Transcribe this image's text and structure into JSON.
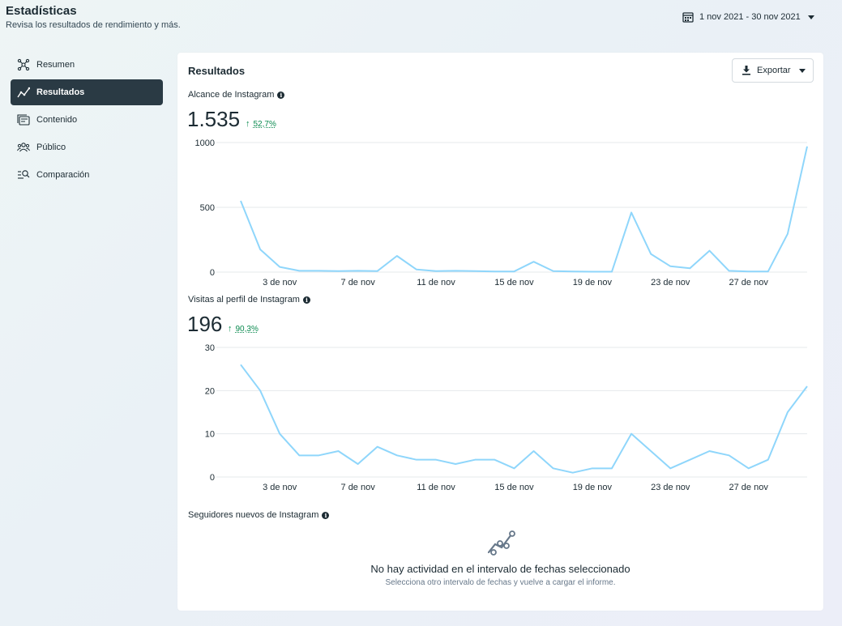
{
  "header": {
    "title": "Estadísticas",
    "subtitle": "Revisa los resultados de rendimiento y más.",
    "date_range": "1 nov 2021 - 30 nov 2021"
  },
  "sidebar": {
    "items": [
      {
        "label": "Resumen",
        "icon": "network-icon",
        "active": false
      },
      {
        "label": "Resultados",
        "icon": "trend-line-icon",
        "active": true
      },
      {
        "label": "Contenido",
        "icon": "content-icon",
        "active": false
      },
      {
        "label": "Público",
        "icon": "people-icon",
        "active": false
      },
      {
        "label": "Comparación",
        "icon": "compare-search-icon",
        "active": false
      }
    ]
  },
  "card": {
    "title": "Resultados",
    "export_label": "Exportar"
  },
  "metrics": {
    "reach": {
      "label": "Alcance de Instagram",
      "value": "1.535",
      "change": "52,7%"
    },
    "profile_visits": {
      "label": "Visitas al perfil de Instagram",
      "value": "196",
      "change": "90,3%"
    },
    "new_followers": {
      "label": "Seguidores nuevos de Instagram",
      "empty_title": "No hay actividad en el intervalo de fechas seleccionado",
      "empty_subtitle": "Selecciona otro intervalo de fechas y vuelve a cargar el informe."
    }
  },
  "colors": {
    "line": "#8fd6fb",
    "grid": "#e4e8eb",
    "accent_positive": "#0a8a4f",
    "active_nav": "#2a3a44"
  },
  "chart_data": [
    {
      "type": "line",
      "title": "Alcance de Instagram",
      "x": [
        "1 nov",
        "2 nov",
        "3 nov",
        "4 nov",
        "5 nov",
        "6 nov",
        "7 nov",
        "8 nov",
        "9 nov",
        "10 nov",
        "11 nov",
        "12 nov",
        "13 nov",
        "14 nov",
        "15 nov",
        "16 nov",
        "17 nov",
        "18 nov",
        "19 nov",
        "20 nov",
        "21 nov",
        "22 nov",
        "23 nov",
        "24 nov",
        "25 nov",
        "26 nov",
        "27 nov",
        "28 nov",
        "29 nov",
        "30 nov"
      ],
      "x_tick_labels": [
        "3 de nov",
        "7 de nov",
        "11 de nov",
        "15 de nov",
        "19 de nov",
        "23 de nov",
        "27 de nov"
      ],
      "x_tick_index": [
        2,
        6,
        10,
        14,
        18,
        22,
        26
      ],
      "y_ticks": [
        0,
        500,
        1000
      ],
      "ylim": [
        0,
        1000
      ],
      "grid": true,
      "series": [
        {
          "values": [
            550,
            175,
            40,
            10,
            10,
            8,
            10,
            8,
            125,
            20,
            8,
            10,
            8,
            5,
            5,
            80,
            8,
            5,
            3,
            3,
            460,
            140,
            45,
            30,
            165,
            10,
            5,
            5,
            295,
            970
          ]
        }
      ]
    },
    {
      "type": "line",
      "title": "Visitas al perfil de Instagram",
      "x": [
        "1 nov",
        "2 nov",
        "3 nov",
        "4 nov",
        "5 nov",
        "6 nov",
        "7 nov",
        "8 nov",
        "9 nov",
        "10 nov",
        "11 nov",
        "12 nov",
        "13 nov",
        "14 nov",
        "15 nov",
        "16 nov",
        "17 nov",
        "18 nov",
        "19 nov",
        "20 nov",
        "21 nov",
        "22 nov",
        "23 nov",
        "24 nov",
        "25 nov",
        "26 nov",
        "27 nov",
        "28 nov",
        "29 nov",
        "30 nov"
      ],
      "x_tick_labels": [
        "3 de nov",
        "7 de nov",
        "11 de nov",
        "15 de nov",
        "19 de nov",
        "23 de nov",
        "27 de nov"
      ],
      "x_tick_index": [
        2,
        6,
        10,
        14,
        18,
        22,
        26
      ],
      "y_ticks": [
        0,
        10,
        20,
        30
      ],
      "ylim": [
        0,
        30
      ],
      "grid": true,
      "series": [
        {
          "values": [
            26,
            20,
            10,
            5,
            5,
            6,
            3,
            7,
            5,
            4,
            4,
            3,
            4,
            4,
            2,
            6,
            2,
            1,
            2,
            2,
            10,
            6,
            2,
            4,
            6,
            5,
            2,
            4,
            15,
            21
          ]
        }
      ]
    }
  ]
}
